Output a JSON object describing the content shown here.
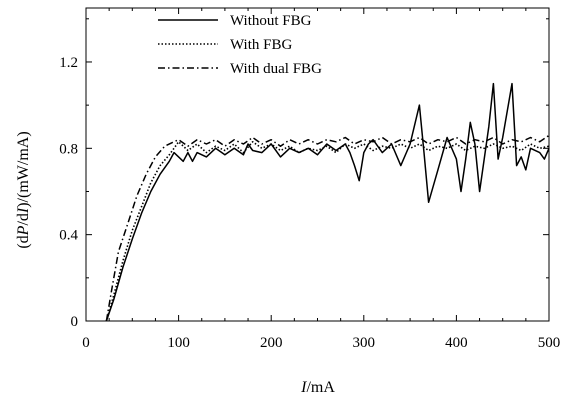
{
  "chart_data": {
    "type": "line",
    "xlabel_italic": "I",
    "xlabel_unit": "/mA",
    "ylabel_prefix": "(d",
    "ylabel_p": "P",
    "ylabel_mid": "/d",
    "ylabel_i": "I",
    "ylabel_unit": ")/(mW/mA)",
    "xlim": [
      0,
      500
    ],
    "ylim": [
      0,
      1.45
    ],
    "x_ticks": [
      0,
      100,
      200,
      300,
      400,
      500
    ],
    "x_tick_labels": [
      "0",
      "100",
      "200",
      "300",
      "400",
      "500"
    ],
    "y_ticks": [
      0,
      0.4,
      0.8,
      1.2
    ],
    "y_tick_labels": [
      "0",
      "0.4",
      "0.8",
      "1.2"
    ],
    "grid": false,
    "legend_position": "top-left",
    "series": [
      {
        "name": "Without FBG",
        "style": "solid",
        "points": [
          [
            22,
            0
          ],
          [
            30,
            0.1
          ],
          [
            40,
            0.25
          ],
          [
            50,
            0.38
          ],
          [
            60,
            0.5
          ],
          [
            70,
            0.6
          ],
          [
            80,
            0.68
          ],
          [
            90,
            0.74
          ],
          [
            95,
            0.78
          ],
          [
            100,
            0.76
          ],
          [
            105,
            0.74
          ],
          [
            110,
            0.78
          ],
          [
            115,
            0.74
          ],
          [
            120,
            0.78
          ],
          [
            130,
            0.76
          ],
          [
            140,
            0.8
          ],
          [
            150,
            0.77
          ],
          [
            160,
            0.8
          ],
          [
            170,
            0.77
          ],
          [
            175,
            0.82
          ],
          [
            180,
            0.79
          ],
          [
            190,
            0.78
          ],
          [
            200,
            0.82
          ],
          [
            210,
            0.76
          ],
          [
            220,
            0.8
          ],
          [
            230,
            0.78
          ],
          [
            240,
            0.8
          ],
          [
            250,
            0.77
          ],
          [
            260,
            0.82
          ],
          [
            270,
            0.79
          ],
          [
            280,
            0.82
          ],
          [
            285,
            0.78
          ],
          [
            290,
            0.72
          ],
          [
            295,
            0.65
          ],
          [
            300,
            0.78
          ],
          [
            305,
            0.82
          ],
          [
            310,
            0.84
          ],
          [
            320,
            0.78
          ],
          [
            330,
            0.82
          ],
          [
            340,
            0.72
          ],
          [
            350,
            0.82
          ],
          [
            360,
            1.0
          ],
          [
            365,
            0.78
          ],
          [
            370,
            0.55
          ],
          [
            380,
            0.7
          ],
          [
            390,
            0.85
          ],
          [
            400,
            0.75
          ],
          [
            405,
            0.6
          ],
          [
            410,
            0.75
          ],
          [
            415,
            0.92
          ],
          [
            420,
            0.82
          ],
          [
            425,
            0.6
          ],
          [
            430,
            0.75
          ],
          [
            435,
            0.9
          ],
          [
            440,
            1.1
          ],
          [
            445,
            0.75
          ],
          [
            450,
            0.85
          ],
          [
            460,
            1.1
          ],
          [
            465,
            0.72
          ],
          [
            470,
            0.76
          ],
          [
            475,
            0.7
          ],
          [
            480,
            0.8
          ],
          [
            490,
            0.78
          ],
          [
            495,
            0.75
          ],
          [
            500,
            0.8
          ]
        ]
      },
      {
        "name": "With FBG",
        "style": "dotted",
        "points": [
          [
            22,
            0
          ],
          [
            30,
            0.12
          ],
          [
            40,
            0.28
          ],
          [
            50,
            0.42
          ],
          [
            60,
            0.53
          ],
          [
            70,
            0.64
          ],
          [
            80,
            0.72
          ],
          [
            90,
            0.77
          ],
          [
            95,
            0.8
          ],
          [
            100,
            0.83
          ],
          [
            110,
            0.79
          ],
          [
            120,
            0.82
          ],
          [
            130,
            0.78
          ],
          [
            140,
            0.81
          ],
          [
            150,
            0.79
          ],
          [
            160,
            0.82
          ],
          [
            170,
            0.78
          ],
          [
            180,
            0.83
          ],
          [
            190,
            0.8
          ],
          [
            200,
            0.82
          ],
          [
            210,
            0.79
          ],
          [
            220,
            0.81
          ],
          [
            230,
            0.78
          ],
          [
            240,
            0.8
          ],
          [
            250,
            0.79
          ],
          [
            260,
            0.81
          ],
          [
            270,
            0.78
          ],
          [
            280,
            0.82
          ],
          [
            290,
            0.8
          ],
          [
            300,
            0.82
          ],
          [
            310,
            0.79
          ],
          [
            320,
            0.81
          ],
          [
            330,
            0.8
          ],
          [
            340,
            0.82
          ],
          [
            350,
            0.8
          ],
          [
            360,
            0.82
          ],
          [
            370,
            0.79
          ],
          [
            380,
            0.81
          ],
          [
            390,
            0.8
          ],
          [
            400,
            0.82
          ],
          [
            410,
            0.79
          ],
          [
            420,
            0.81
          ],
          [
            430,
            0.8
          ],
          [
            440,
            0.82
          ],
          [
            450,
            0.8
          ],
          [
            460,
            0.81
          ],
          [
            470,
            0.79
          ],
          [
            480,
            0.82
          ],
          [
            490,
            0.8
          ],
          [
            500,
            0.81
          ]
        ]
      },
      {
        "name": "With dual FBG",
        "style": "dashdot",
        "points": [
          [
            22,
            0
          ],
          [
            28,
            0.15
          ],
          [
            35,
            0.32
          ],
          [
            45,
            0.45
          ],
          [
            55,
            0.58
          ],
          [
            65,
            0.68
          ],
          [
            75,
            0.76
          ],
          [
            85,
            0.81
          ],
          [
            95,
            0.83
          ],
          [
            100,
            0.84
          ],
          [
            110,
            0.81
          ],
          [
            120,
            0.84
          ],
          [
            130,
            0.82
          ],
          [
            140,
            0.84
          ],
          [
            150,
            0.81
          ],
          [
            160,
            0.84
          ],
          [
            170,
            0.82
          ],
          [
            180,
            0.85
          ],
          [
            190,
            0.82
          ],
          [
            200,
            0.84
          ],
          [
            210,
            0.81
          ],
          [
            220,
            0.84
          ],
          [
            230,
            0.82
          ],
          [
            240,
            0.84
          ],
          [
            250,
            0.82
          ],
          [
            260,
            0.84
          ],
          [
            270,
            0.83
          ],
          [
            280,
            0.85
          ],
          [
            290,
            0.82
          ],
          [
            300,
            0.84
          ],
          [
            310,
            0.83
          ],
          [
            320,
            0.85
          ],
          [
            330,
            0.82
          ],
          [
            340,
            0.84
          ],
          [
            350,
            0.83
          ],
          [
            360,
            0.85
          ],
          [
            370,
            0.82
          ],
          [
            380,
            0.84
          ],
          [
            390,
            0.83
          ],
          [
            400,
            0.85
          ],
          [
            410,
            0.82
          ],
          [
            420,
            0.84
          ],
          [
            430,
            0.83
          ],
          [
            440,
            0.85
          ],
          [
            450,
            0.82
          ],
          [
            460,
            0.84
          ],
          [
            470,
            0.83
          ],
          [
            480,
            0.85
          ],
          [
            490,
            0.83
          ],
          [
            500,
            0.86
          ]
        ]
      }
    ]
  }
}
